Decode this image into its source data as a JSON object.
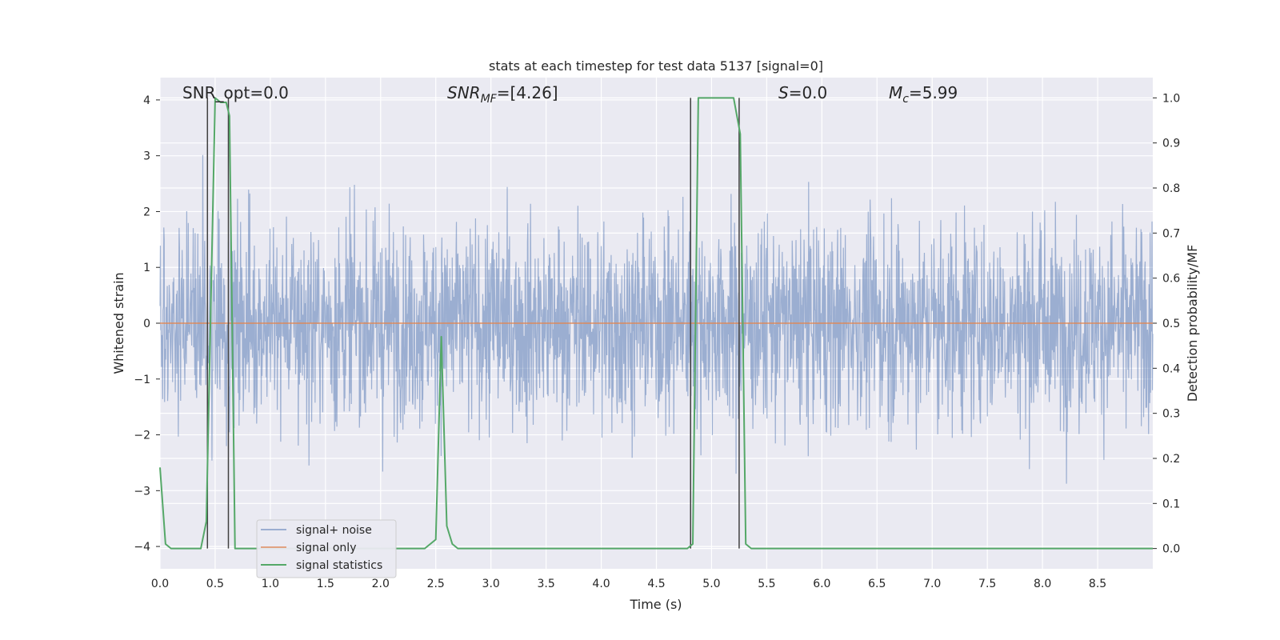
{
  "chart_data": {
    "type": "line",
    "title": "stats at each timestep for test data 5137 [signal=0]",
    "xlabel": "Time (s)",
    "ylabel": "Whitened strain",
    "ylabel_right": "Detection probability/MF",
    "xlim": [
      0,
      9.0
    ],
    "ylim": [
      -4.4,
      4.4
    ],
    "ylim_right": [
      -0.045,
      1.045
    ],
    "x_ticks": [
      "0.0",
      "0.5",
      "1.0",
      "1.5",
      "2.0",
      "2.5",
      "3.0",
      "3.5",
      "4.0",
      "4.5",
      "5.0",
      "5.5",
      "6.0",
      "6.5",
      "7.0",
      "7.5",
      "8.0",
      "8.5"
    ],
    "y_ticks": [
      "4",
      "3",
      "2",
      "1",
      "0",
      "−1",
      "−2",
      "−3",
      "−4"
    ],
    "y_right_ticks": [
      "1.0",
      "0.9",
      "0.8",
      "0.7",
      "0.6",
      "0.5",
      "0.4",
      "0.3",
      "0.2",
      "0.1",
      "0.0"
    ],
    "grid": true,
    "legend_position": "lower-left",
    "annotations": {
      "snr_opt": "SNR_opt=0.0",
      "snr_mf_main": "SNR",
      "snr_mf_sub": "MF",
      "snr_mf_value": "=[4.26]",
      "s_main": "S",
      "s_value": "=0.0",
      "mc_main": "M",
      "mc_sub": "c",
      "mc_value": "=5.99"
    },
    "series": [
      {
        "name": "signal+ noise",
        "color": "#4c72b0",
        "kind": "noise",
        "sample_rate": 2048,
        "duration": 9.0,
        "envelope": 1.6,
        "note": "whitened Gaussian-like noise filling approx ±1.6 with spikes up to ±3.9"
      },
      {
        "name": "signal only",
        "color": "#dd8452",
        "y": 0
      },
      {
        "name": "signal statistics",
        "color": "#55a868",
        "axis": "right",
        "x": [
          0.0,
          0.05,
          0.1,
          0.2,
          0.3,
          0.37,
          0.42,
          0.5,
          0.55,
          0.6,
          0.63,
          0.68,
          0.75,
          1.0,
          1.5,
          2.0,
          2.4,
          2.5,
          2.55,
          2.6,
          2.65,
          2.7,
          2.8,
          3.0,
          4.0,
          4.5,
          4.78,
          4.83,
          4.88,
          5.0,
          5.1,
          5.2,
          5.26,
          5.31,
          5.36,
          5.5,
          6.0,
          7.0,
          8.0,
          9.0
        ],
        "y": [
          0.18,
          0.01,
          0.0,
          0.0,
          0.0,
          0.0,
          0.06,
          1.0,
          0.99,
          0.99,
          0.96,
          0.0,
          0.0,
          0.0,
          0.0,
          0.0,
          0.0,
          0.02,
          0.47,
          0.05,
          0.01,
          0.0,
          0.0,
          0.0,
          0.0,
          0.0,
          0.0,
          0.01,
          1.0,
          1.0,
          1.0,
          1.0,
          0.92,
          0.01,
          0.0,
          0.0,
          0.0,
          0.0,
          0.0,
          0.0
        ]
      }
    ],
    "vertical_lines": [
      0.43,
      0.62,
      4.81,
      5.25
    ],
    "colors": {
      "background": "#eaeaf2",
      "grid": "#ffffff",
      "vline": "#404040"
    }
  }
}
